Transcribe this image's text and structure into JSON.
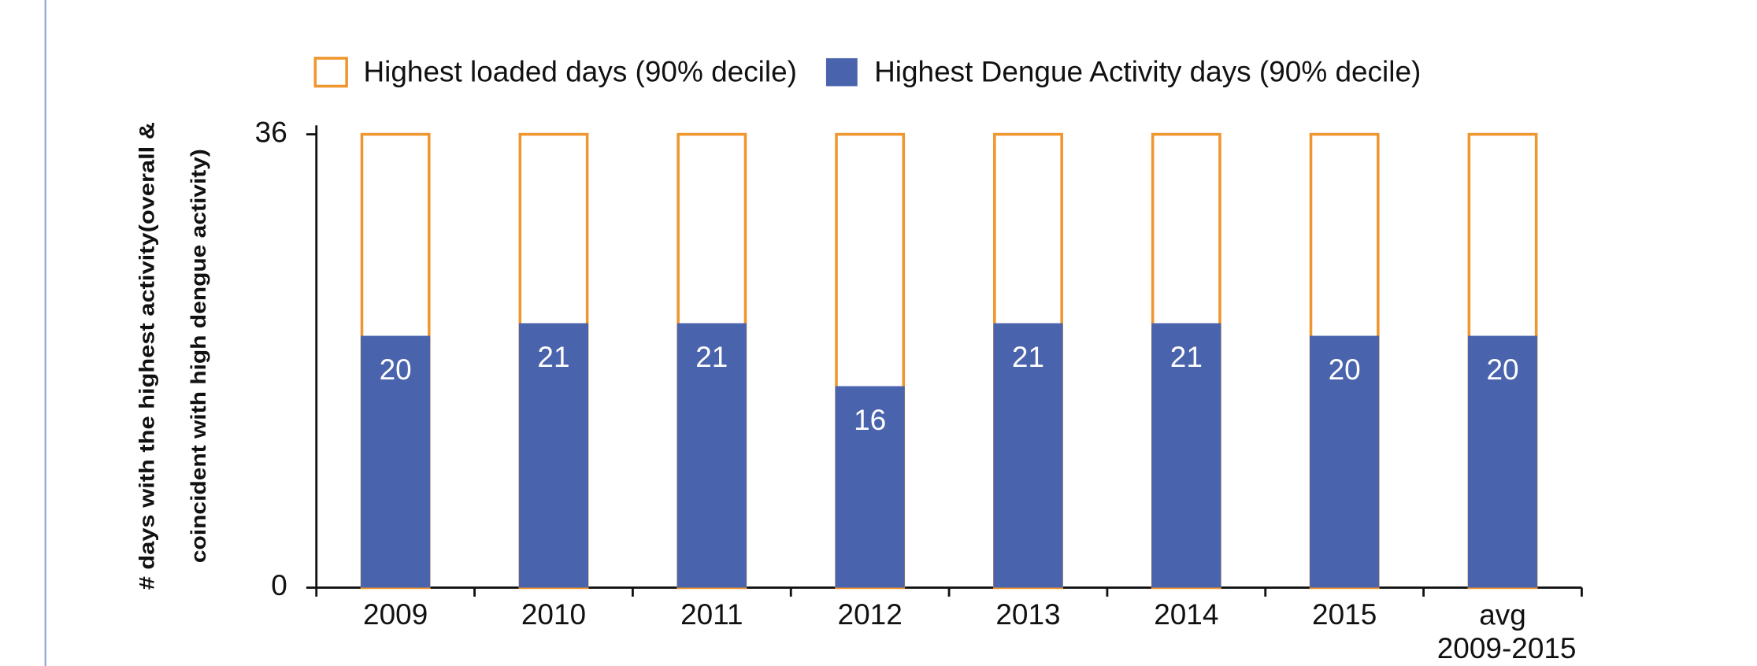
{
  "chart_data": {
    "type": "bar",
    "categories": [
      "2009",
      "2010",
      "2011",
      "2012",
      "2013",
      "2014",
      "2015",
      "avg 2009-2015"
    ],
    "series": [
      {
        "name": "Highest loaded days (90% decile)",
        "color": "#f0962e",
        "style": "outline",
        "values": [
          36,
          36,
          36,
          36,
          36,
          36,
          36,
          36
        ]
      },
      {
        "name": "Highest Dengue Activity days (90% decile)",
        "color": "#4a63ad",
        "style": "filled",
        "values": [
          20,
          21,
          21,
          16,
          21,
          21,
          20,
          20
        ],
        "data_labels": true
      }
    ],
    "ylabel": [
      "# days with the highest activity(overall &",
      "coincident with high dengue activity)"
    ],
    "ylim": [
      0,
      36
    ],
    "yticks": [
      0,
      36
    ],
    "grid": false,
    "legend": "top"
  }
}
